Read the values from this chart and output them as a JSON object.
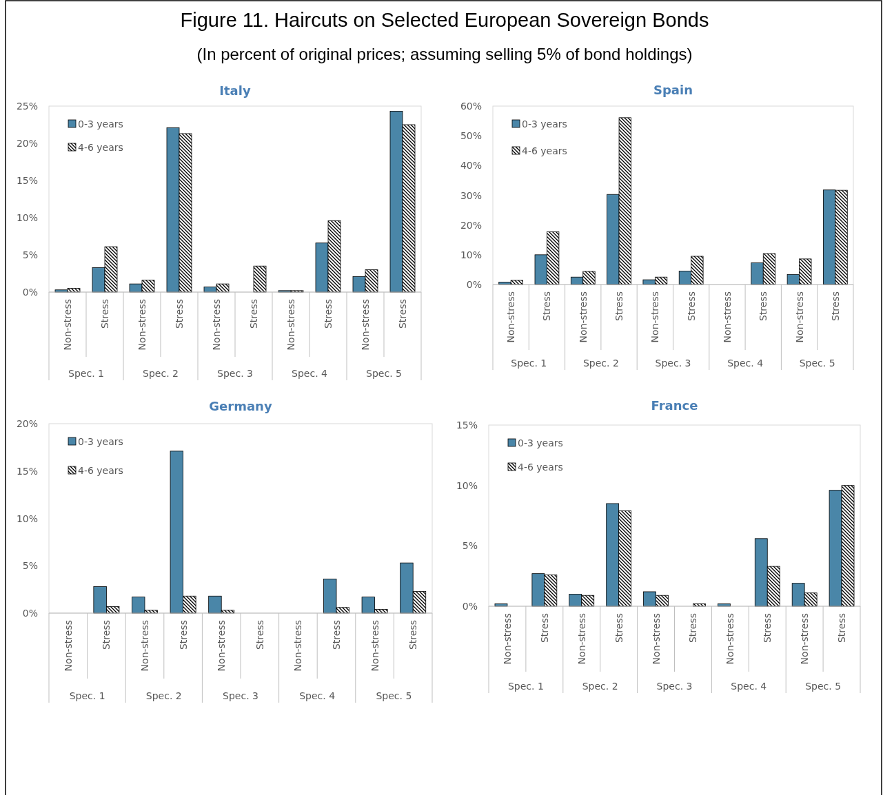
{
  "chart_data": [
    {
      "type": "bar",
      "title": "Italy",
      "categories": [
        "Non-stress",
        "Stress",
        "Non-stress",
        "Stress",
        "Non-stress",
        "Stress",
        "Non-stress",
        "Stress",
        "Non-stress",
        "Stress"
      ],
      "series": [
        {
          "name": "0-3 years",
          "color": "#4a86a8",
          "values": [
            0.3,
            3.3,
            1.1,
            22.1,
            0.7,
            null,
            0.2,
            6.6,
            2.1,
            24.3
          ]
        },
        {
          "name": "4-6 years",
          "color": "#000000",
          "values": [
            0.5,
            6.1,
            1.6,
            21.3,
            1.1,
            3.5,
            0.2,
            9.6,
            3.0,
            22.5
          ]
        }
      ],
      "ylim": [
        0,
        25
      ],
      "yticks": [
        {
          "value": 0,
          "label": "0%"
        },
        {
          "value": 5,
          "label": "5%"
        },
        {
          "value": 10,
          "label": "10%"
        },
        {
          "value": 15,
          "label": "15%"
        },
        {
          "value": 20,
          "label": "20%"
        },
        {
          "value": 25,
          "label": "25%"
        }
      ],
      "legend": "top left",
      "grid": false,
      "annotations": [
        "Spec. 1",
        "Spec. 2",
        "Spec. 3",
        "Spec. 4",
        "Spec. 5",
        "Figure 11. Haircuts on Selected European Sovereign Bonds",
        "(In percent of original prices; assuming selling 5% of bond holdings)"
      ]
    },
    {
      "type": "bar",
      "title": "Spain",
      "categories": [
        "Non-stress",
        "Stress",
        "Non-stress",
        "Stress",
        "Non-stress",
        "Stress",
        "Non-stress",
        "Stress",
        "Non-stress",
        "Stress"
      ],
      "series": [
        {
          "name": "0-3 years",
          "color": "#4a86a8",
          "values": [
            0.8,
            10,
            2.5,
            30.3,
            1.6,
            4.5,
            null,
            7.3,
            3.4,
            31.8
          ]
        },
        {
          "name": "4-6 years",
          "color": "#000000",
          "values": [
            1.4,
            17.7,
            4.4,
            56.1,
            2.5,
            9.5,
            null,
            10.4,
            8.6,
            31.7
          ]
        }
      ],
      "ylim": [
        0,
        60
      ],
      "yticks": [
        {
          "value": 0,
          "label": "0%"
        },
        {
          "value": 10,
          "label": "10%"
        },
        {
          "value": 20,
          "label": "20%"
        },
        {
          "value": 30,
          "label": "30%"
        },
        {
          "value": 40,
          "label": "40%"
        },
        {
          "value": 50,
          "label": "50%"
        },
        {
          "value": 60,
          "label": "60%"
        }
      ],
      "legend": "top left",
      "grid": false,
      "annotations": [
        "Spec. 1",
        "Spec. 2",
        "Spec. 3",
        "Spec. 4",
        "Spec. 5"
      ]
    },
    {
      "type": "bar",
      "title": "Germany",
      "categories": [
        "Non-stress",
        "Stress",
        "Non-stress",
        "Stress",
        "Non-stress",
        "Stress",
        "Non-stress",
        "Stress",
        "Non-stress",
        "Stress"
      ],
      "series": [
        {
          "name": "0-3 years",
          "color": "#4a86a8",
          "values": [
            null,
            2.8,
            1.7,
            17.1,
            1.8,
            null,
            null,
            3.6,
            1.7,
            5.3
          ]
        },
        {
          "name": "4-6 years",
          "color": "#000000",
          "values": [
            null,
            0.7,
            0.3,
            1.8,
            0.3,
            null,
            null,
            0.6,
            0.4,
            2.3
          ]
        }
      ],
      "ylim": [
        0,
        20
      ],
      "yticks": [
        {
          "value": 0,
          "label": "0%"
        },
        {
          "value": 5,
          "label": "5%"
        },
        {
          "value": 10,
          "label": "10%"
        },
        {
          "value": 15,
          "label": "15%"
        },
        {
          "value": 20,
          "label": "20%"
        }
      ],
      "legend": "top left",
      "grid": false,
      "annotations": [
        "Spec. 1",
        "Spec. 2",
        "Spec. 3",
        "Spec. 4",
        "Spec. 5"
      ]
    },
    {
      "type": "bar",
      "title": "France",
      "categories": [
        "Non-stress",
        "Stress",
        "Non-stress",
        "Stress",
        "Non-stress",
        "Stress",
        "Non-stress",
        "Stress",
        "Non-stress",
        "Stress"
      ],
      "series": [
        {
          "name": "0-3 years",
          "color": "#4a86a8",
          "values": [
            0.2,
            2.7,
            1.0,
            8.5,
            1.2,
            null,
            0.2,
            5.6,
            1.9,
            9.6
          ]
        },
        {
          "name": "4-6 years",
          "color": "#000000",
          "values": [
            null,
            2.6,
            0.9,
            7.9,
            0.9,
            0.2,
            null,
            3.3,
            1.1,
            10.0
          ]
        }
      ],
      "ylim": [
        0,
        15
      ],
      "yticks": [
        {
          "value": 0,
          "label": "0%"
        },
        {
          "value": 5,
          "label": "5%"
        },
        {
          "value": 10,
          "label": "10%"
        },
        {
          "value": 15,
          "label": "15%"
        }
      ],
      "legend": "top left",
      "grid": false,
      "annotations": [
        "Spec. 1",
        "Spec. 2",
        "Spec. 3",
        "Spec. 4",
        "Spec. 5"
      ]
    }
  ]
}
